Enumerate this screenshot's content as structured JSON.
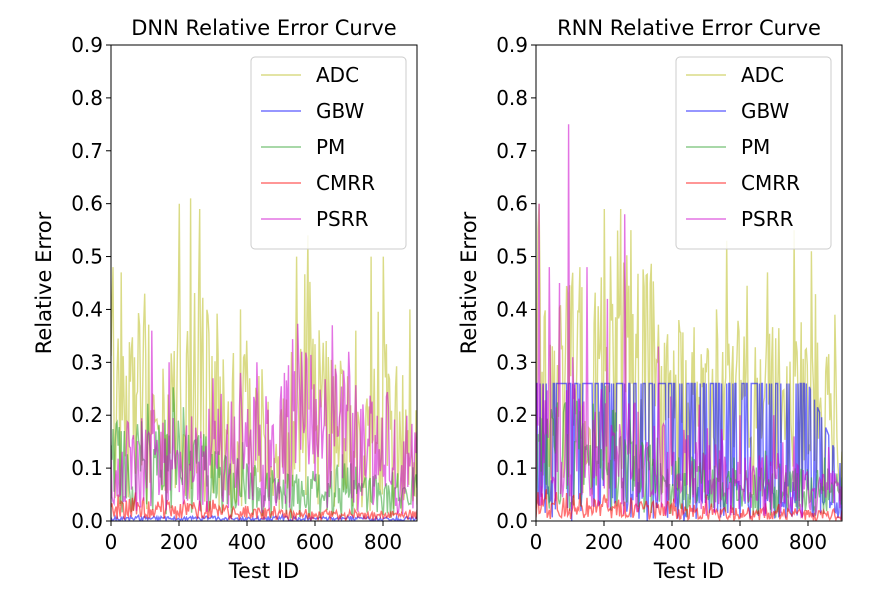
{
  "chart_data": [
    {
      "type": "line",
      "title": "DNN Relative Error Curve",
      "xlabel": "Test ID",
      "ylabel": "Relative Error",
      "xlim": [
        0,
        900
      ],
      "ylim": [
        0,
        0.9
      ],
      "xticks": [
        "0",
        "200",
        "400",
        "600",
        "800"
      ],
      "yticks": [
        "0.0",
        "0.1",
        "0.2",
        "0.3",
        "0.4",
        "0.5",
        "0.6",
        "0.7",
        "0.8",
        "0.9"
      ],
      "legend_position": "top-right",
      "grid": false,
      "series": [
        {
          "name": "ADC",
          "color": "#bcbd22",
          "x": [
            0,
            50,
            100,
            150,
            200,
            250,
            300,
            350,
            400,
            450,
            500,
            550,
            580,
            600,
            650,
            700,
            750,
            800,
            850,
            900
          ],
          "values": [
            0.25,
            0.2,
            0.22,
            0.15,
            0.22,
            0.25,
            0.2,
            0.18,
            0.17,
            0.15,
            0.12,
            0.18,
            0.3,
            0.2,
            0.18,
            0.15,
            0.12,
            0.2,
            0.15,
            0.12
          ],
          "peaks": [
            [
              5,
              0.48
            ],
            [
              30,
              0.47
            ],
            [
              100,
              0.43
            ],
            [
              200,
              0.6
            ],
            [
              235,
              0.61
            ],
            [
              260,
              0.59
            ],
            [
              380,
              0.4
            ],
            [
              430,
              0.24
            ],
            [
              545,
              0.5
            ],
            [
              580,
              0.54
            ],
            [
              720,
              0.36
            ],
            [
              765,
              0.5
            ],
            [
              800,
              0.5
            ],
            [
              880,
              0.4
            ]
          ]
        },
        {
          "name": "GBW",
          "color": "#0000ff",
          "x": [
            0,
            100,
            200,
            300,
            400,
            500,
            600,
            700,
            800,
            900
          ],
          "values": [
            0.005,
            0.005,
            0.004,
            0.005,
            0.004,
            0.005,
            0.004,
            0.005,
            0.004,
            0.005
          ],
          "peaks": []
        },
        {
          "name": "PM",
          "color": "#2ca02c",
          "x": [
            0,
            100,
            200,
            300,
            400,
            500,
            600,
            700,
            800,
            900
          ],
          "values": [
            0.11,
            0.1,
            0.12,
            0.08,
            0.06,
            0.05,
            0.05,
            0.06,
            0.05,
            0.06
          ],
          "peaks": [
            [
              30,
              0.17
            ],
            [
              200,
              0.16
            ],
            [
              280,
              0.16
            ]
          ]
        },
        {
          "name": "CMRR",
          "color": "#ff0000",
          "x": [
            0,
            100,
            200,
            300,
            400,
            500,
            600,
            700,
            800,
            900
          ],
          "values": [
            0.02,
            0.025,
            0.02,
            0.02,
            0.015,
            0.012,
            0.01,
            0.012,
            0.01,
            0.012
          ],
          "peaks": [
            [
              20,
              0.05
            ],
            [
              150,
              0.05
            ],
            [
              300,
              0.04
            ]
          ]
        },
        {
          "name": "PSRR",
          "color": "#cc00cc",
          "x": [
            0,
            100,
            200,
            300,
            400,
            500,
            600,
            700,
            800,
            900
          ],
          "values": [
            0.1,
            0.12,
            0.1,
            0.12,
            0.12,
            0.15,
            0.18,
            0.15,
            0.12,
            0.1
          ],
          "peaks": [
            [
              120,
              0.36
            ],
            [
              170,
              0.3
            ],
            [
              300,
              0.27
            ],
            [
              380,
              0.28
            ],
            [
              430,
              0.3
            ],
            [
              510,
              0.28
            ],
            [
              560,
              0.32
            ],
            [
              650,
              0.37
            ],
            [
              700,
              0.32
            ]
          ]
        }
      ]
    },
    {
      "type": "line",
      "title": "RNN Relative Error Curve",
      "xlabel": "Test ID",
      "ylabel": "Relative Error",
      "xlim": [
        0,
        900
      ],
      "ylim": [
        0,
        0.9
      ],
      "xticks": [
        "0",
        "200",
        "400",
        "600",
        "800"
      ],
      "yticks": [
        "0.0",
        "0.1",
        "0.2",
        "0.3",
        "0.4",
        "0.5",
        "0.6",
        "0.7",
        "0.8",
        "0.9"
      ],
      "legend_position": "top-right",
      "grid": false,
      "series": [
        {
          "name": "ADC",
          "color": "#bcbd22",
          "x": [
            0,
            50,
            100,
            150,
            200,
            250,
            300,
            350,
            400,
            450,
            500,
            550,
            600,
            650,
            700,
            750,
            800,
            850,
            900
          ],
          "values": [
            0.3,
            0.28,
            0.25,
            0.22,
            0.25,
            0.3,
            0.28,
            0.25,
            0.2,
            0.2,
            0.18,
            0.2,
            0.2,
            0.18,
            0.2,
            0.18,
            0.2,
            0.18,
            0.15
          ],
          "peaks": [
            [
              10,
              0.6
            ],
            [
              130,
              0.48
            ],
            [
              200,
              0.59
            ],
            [
              250,
              0.59
            ],
            [
              280,
              0.55
            ],
            [
              420,
              0.38
            ],
            [
              530,
              0.4
            ],
            [
              560,
              0.53
            ],
            [
              680,
              0.47
            ],
            [
              760,
              0.55
            ],
            [
              810,
              0.51
            ],
            [
              880,
              0.39
            ]
          ]
        },
        {
          "name": "GBW",
          "color": "#0000ff",
          "x": [
            0,
            100,
            200,
            300,
            400,
            500,
            600,
            700,
            800,
            900
          ],
          "values": [
            0.26,
            0.26,
            0.26,
            0.26,
            0.26,
            0.26,
            0.26,
            0.26,
            0.26,
            0.1
          ],
          "peaks": []
        },
        {
          "name": "PM",
          "color": "#2ca02c",
          "x": [
            0,
            100,
            200,
            300,
            400,
            500,
            600,
            700,
            800,
            900
          ],
          "values": [
            0.12,
            0.12,
            0.12,
            0.1,
            0.07,
            0.06,
            0.05,
            0.06,
            0.06,
            0.05
          ],
          "peaks": [
            [
              20,
              0.17
            ],
            [
              250,
              0.16
            ],
            [
              850,
              0.12
            ]
          ]
        },
        {
          "name": "CMRR",
          "color": "#ff0000",
          "x": [
            0,
            100,
            200,
            300,
            400,
            500,
            600,
            700,
            800,
            900
          ],
          "values": [
            0.03,
            0.03,
            0.025,
            0.02,
            0.02,
            0.015,
            0.015,
            0.015,
            0.012,
            0.012
          ],
          "peaks": [
            [
              30,
              0.06
            ],
            [
              200,
              0.05
            ],
            [
              500,
              0.05
            ]
          ]
        },
        {
          "name": "PSRR",
          "color": "#cc00cc",
          "x": [
            0,
            100,
            200,
            300,
            400,
            500,
            600,
            700,
            800,
            900
          ],
          "values": [
            0.15,
            0.15,
            0.12,
            0.12,
            0.1,
            0.08,
            0.07,
            0.07,
            0.05,
            0.05
          ],
          "peaks": [
            [
              10,
              0.6
            ],
            [
              40,
              0.48
            ],
            [
              70,
              0.45
            ],
            [
              95,
              0.75
            ],
            [
              150,
              0.48
            ],
            [
              210,
              0.42
            ],
            [
              260,
              0.58
            ],
            [
              360,
              0.33
            ],
            [
              480,
              0.22
            ],
            [
              600,
              0.2
            ],
            [
              700,
              0.2
            ],
            [
              760,
              0.16
            ],
            [
              860,
              0.14
            ]
          ]
        }
      ]
    }
  ]
}
